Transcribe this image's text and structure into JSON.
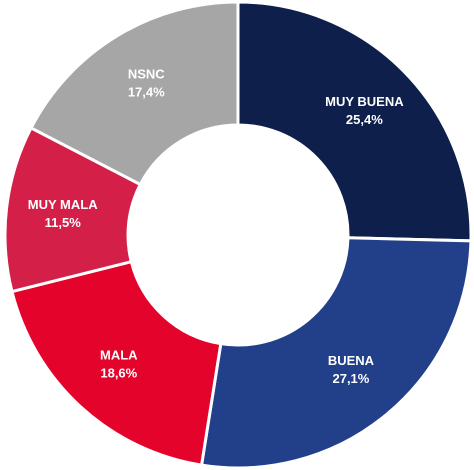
{
  "chart_data": {
    "type": "donut",
    "categories": [
      "MUY BUENA",
      "BUENA",
      "MALA",
      "MUY MALA",
      "NSNC"
    ],
    "values": [
      25.4,
      27.1,
      18.6,
      11.5,
      17.4
    ],
    "value_labels": [
      "25,4%",
      "27,1%",
      "18,6%",
      "11,5%",
      "17,4%"
    ],
    "colors": [
      "#0f1f4b",
      "#22408a",
      "#e4032b",
      "#d42048",
      "#a6a6a6"
    ]
  }
}
